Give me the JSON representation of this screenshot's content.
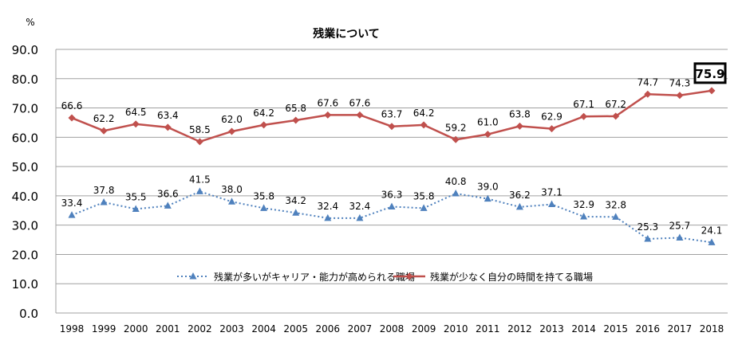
{
  "chart_data": {
    "type": "line",
    "title": "残業について",
    "ylabel": "%",
    "xlabel": "",
    "ylim": [
      0,
      90
    ],
    "yticks": [
      "0.0",
      "10.0",
      "20.0",
      "30.0",
      "40.0",
      "50.0",
      "60.0",
      "70.0",
      "80.0",
      "90.0"
    ],
    "grid": true,
    "legend_position": "bottom-inside",
    "categories": [
      "1998",
      "1999",
      "2000",
      "2001",
      "2002",
      "2003",
      "2004",
      "2005",
      "2006",
      "2007",
      "2008",
      "2009",
      "2010",
      "2011",
      "2012",
      "2013",
      "2014",
      "2015",
      "2016",
      "2017",
      "2018"
    ],
    "series": [
      {
        "name": "残業が多いがキャリア・能力が高められる職場",
        "color": "#4f81bd",
        "style": "dotted",
        "marker": "triangle",
        "values": [
          33.4,
          37.8,
          35.5,
          36.6,
          41.5,
          38.0,
          35.8,
          34.2,
          32.4,
          32.4,
          36.3,
          35.8,
          40.8,
          39.0,
          36.2,
          37.1,
          32.9,
          32.8,
          25.3,
          25.7,
          24.1
        ]
      },
      {
        "name": "残業が少なく自分の時間を持てる職場",
        "color": "#c0504d",
        "style": "solid",
        "marker": "diamond",
        "values": [
          66.6,
          62.2,
          64.5,
          63.4,
          58.5,
          62.0,
          64.2,
          65.8,
          67.6,
          67.6,
          63.7,
          64.2,
          59.2,
          61.0,
          63.8,
          62.9,
          67.1,
          67.2,
          74.7,
          74.3,
          75.9
        ]
      }
    ],
    "highlight": {
      "series": 1,
      "category": "2018",
      "label": "75.9"
    }
  }
}
